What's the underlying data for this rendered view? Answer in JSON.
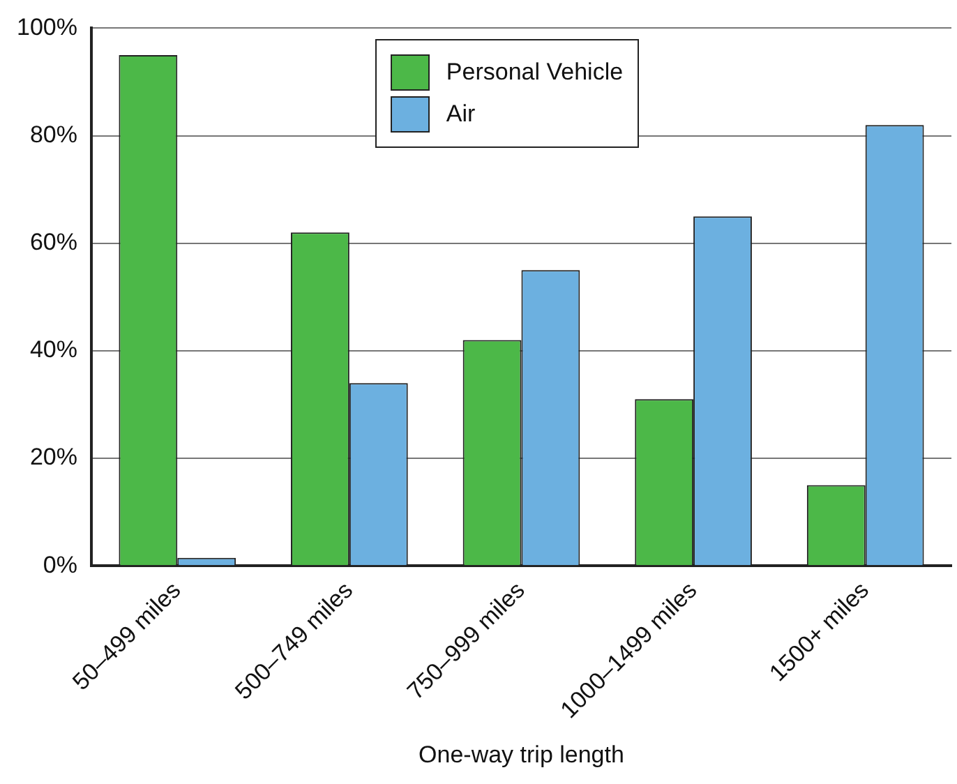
{
  "chart_data": {
    "type": "bar",
    "xlabel": "One-way trip length",
    "categories": [
      "50–499 miles",
      "500–749 miles",
      "750–999 miles",
      "1000–1499 miles",
      "1500+ miles"
    ],
    "series": [
      {
        "name": "Personal Vehicle",
        "color": "#4cb848",
        "values": [
          95,
          62,
          42,
          31,
          15
        ]
      },
      {
        "name": "Air",
        "color": "#6cb0e0",
        "values": [
          1.5,
          34,
          55,
          65,
          82
        ]
      }
    ],
    "ylim": [
      0,
      100
    ],
    "yticks": [
      {
        "value": 0,
        "label": "0%"
      },
      {
        "value": 20,
        "label": "20%"
      },
      {
        "value": 40,
        "label": "40%"
      },
      {
        "value": 60,
        "label": "60%"
      },
      {
        "value": 80,
        "label": "80%"
      },
      {
        "value": 100,
        "label": "100%"
      }
    ],
    "grid": "y",
    "legend": "top"
  }
}
